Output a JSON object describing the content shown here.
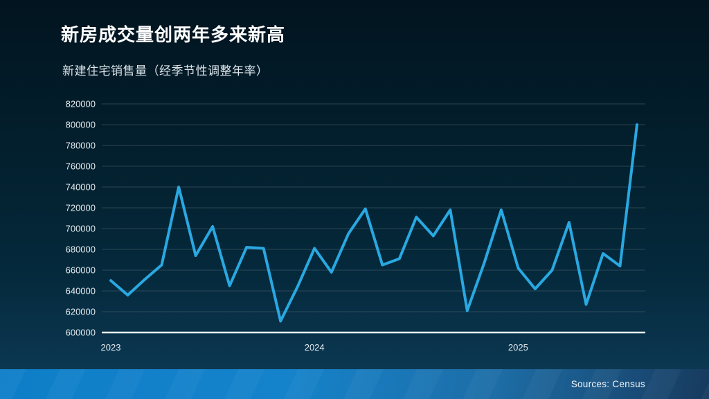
{
  "page": {
    "title": "新房成交量创两年多来新高",
    "subtitle": "新建住宅销售量（经季节性调整年率）",
    "source": "Sources: Census"
  },
  "colors": {
    "line": "#29A8E1",
    "grid": "#51626e",
    "axis": "#f2f6f8",
    "tick_label": "#e4ebef",
    "title": "#ffffff",
    "subtitle": "#dde6ec",
    "background_top": "#021420",
    "background_bottom": "#0e3c59",
    "footer_gradient_left": "#0e7ec8",
    "footer_gradient_right": "#173a5e",
    "source_text": "#f4f8fb"
  },
  "chart_data": {
    "type": "line",
    "title": "新房成交量创两年多来新高",
    "subtitle": "新建住宅销售量（经季节性调整年率）",
    "xlabel": "",
    "ylabel": "",
    "grid": true,
    "legend": false,
    "ylim": [
      600000,
      820000
    ],
    "ytick_step": 20000,
    "yticks": [
      600000,
      620000,
      640000,
      660000,
      680000,
      700000,
      720000,
      740000,
      760000,
      780000,
      800000,
      820000
    ],
    "xticks": [
      {
        "label": "2023",
        "index": 0
      },
      {
        "label": "2024",
        "index": 12
      },
      {
        "label": "2025",
        "index": 24
      }
    ],
    "x": [
      "2023-01",
      "2023-02",
      "2023-03",
      "2023-04",
      "2023-05",
      "2023-06",
      "2023-07",
      "2023-08",
      "2023-09",
      "2023-10",
      "2023-11",
      "2023-12",
      "2024-01",
      "2024-02",
      "2024-03",
      "2024-04",
      "2024-05",
      "2024-06",
      "2024-07",
      "2024-08",
      "2024-09",
      "2024-10",
      "2024-11",
      "2024-12",
      "2025-01",
      "2025-02",
      "2025-03",
      "2025-04",
      "2025-05",
      "2025-06",
      "2025-07",
      "2025-08"
    ],
    "values": [
      650000,
      636000,
      651000,
      665000,
      740000,
      674000,
      702000,
      645000,
      682000,
      681000,
      611000,
      644000,
      681000,
      658000,
      695000,
      719000,
      665000,
      671000,
      711000,
      693000,
      718000,
      621000,
      667000,
      718000,
      662000,
      642000,
      660000,
      706000,
      627000,
      676000,
      664000,
      800000
    ]
  }
}
